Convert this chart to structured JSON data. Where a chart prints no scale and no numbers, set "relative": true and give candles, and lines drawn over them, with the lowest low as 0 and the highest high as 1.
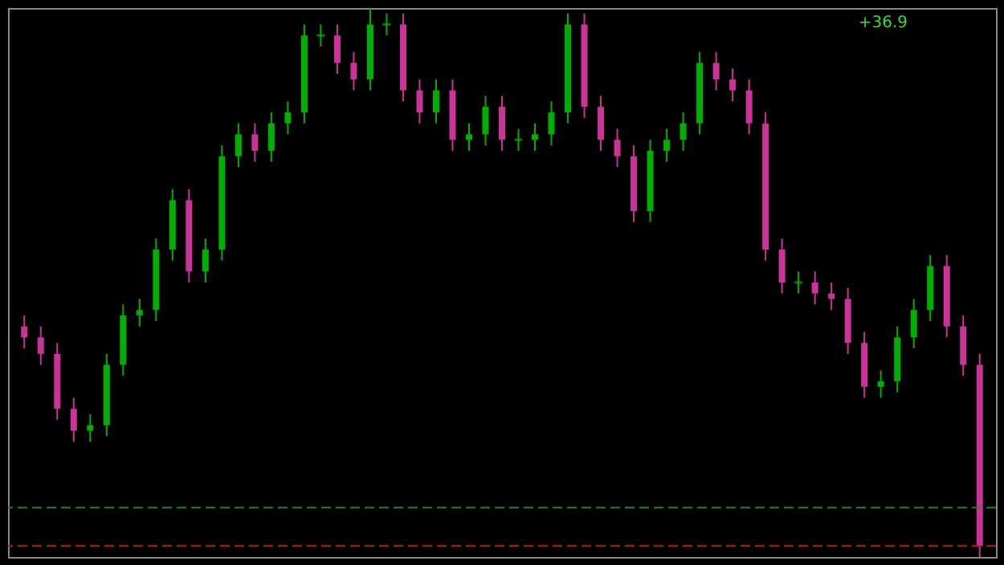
{
  "chart_data": {
    "type": "candlestick",
    "relative": true,
    "grid": false,
    "annotations": [
      "+36.9"
    ],
    "categories": [
      null,
      null,
      null,
      null,
      null,
      null,
      null,
      null,
      null,
      null,
      null,
      null,
      null,
      null,
      null,
      null,
      null,
      null,
      null,
      null,
      null,
      null,
      null,
      null,
      null,
      null,
      null,
      null,
      null,
      null,
      null,
      null,
      null,
      null,
      null,
      null,
      null,
      null,
      null,
      null,
      null,
      null,
      null,
      null,
      null,
      null,
      null,
      null,
      null,
      null,
      null,
      null,
      null,
      null,
      null,
      null,
      null,
      null,
      null
    ],
    "ohlc": [
      [
        0.42,
        0.44,
        0.38,
        0.4
      ],
      [
        0.4,
        0.42,
        0.35,
        0.37
      ],
      [
        0.37,
        0.39,
        0.25,
        0.27
      ],
      [
        0.27,
        0.29,
        0.21,
        0.23
      ],
      [
        0.23,
        0.26,
        0.21,
        0.24
      ],
      [
        0.24,
        0.37,
        0.22,
        0.35
      ],
      [
        0.35,
        0.46,
        0.33,
        0.44
      ],
      [
        0.44,
        0.47,
        0.42,
        0.45
      ],
      [
        0.45,
        0.58,
        0.43,
        0.56
      ],
      [
        0.56,
        0.67,
        0.54,
        0.65
      ],
      [
        0.65,
        0.67,
        0.5,
        0.52
      ],
      [
        0.52,
        0.58,
        0.5,
        0.56
      ],
      [
        0.56,
        0.75,
        0.54,
        0.73
      ],
      [
        0.73,
        0.79,
        0.71,
        0.77
      ],
      [
        0.77,
        0.79,
        0.72,
        0.74
      ],
      [
        0.74,
        0.81,
        0.72,
        0.79
      ],
      [
        0.79,
        0.83,
        0.77,
        0.81
      ],
      [
        0.81,
        0.97,
        0.79,
        0.95
      ],
      [
        0.95,
        0.97,
        0.93,
        0.95
      ],
      [
        0.95,
        0.97,
        0.88,
        0.9
      ],
      [
        0.9,
        0.92,
        0.85,
        0.87
      ],
      [
        0.87,
        1.0,
        0.85,
        0.97
      ],
      [
        0.97,
        0.99,
        0.95,
        0.97
      ],
      [
        0.97,
        0.99,
        0.83,
        0.85
      ],
      [
        0.85,
        0.87,
        0.79,
        0.81
      ],
      [
        0.81,
        0.87,
        0.79,
        0.85
      ],
      [
        0.85,
        0.87,
        0.74,
        0.76
      ],
      [
        0.76,
        0.79,
        0.74,
        0.77
      ],
      [
        0.77,
        0.84,
        0.75,
        0.82
      ],
      [
        0.82,
        0.84,
        0.74,
        0.76
      ],
      [
        0.76,
        0.78,
        0.74,
        0.76
      ],
      [
        0.76,
        0.79,
        0.74,
        0.77
      ],
      [
        0.77,
        0.83,
        0.75,
        0.81
      ],
      [
        0.81,
        0.99,
        0.79,
        0.97
      ],
      [
        0.97,
        0.99,
        0.8,
        0.82
      ],
      [
        0.82,
        0.84,
        0.74,
        0.76
      ],
      [
        0.76,
        0.78,
        0.71,
        0.73
      ],
      [
        0.73,
        0.75,
        0.61,
        0.63
      ],
      [
        0.63,
        0.76,
        0.61,
        0.74
      ],
      [
        0.74,
        0.78,
        0.72,
        0.76
      ],
      [
        0.76,
        0.81,
        0.74,
        0.79
      ],
      [
        0.79,
        0.92,
        0.77,
        0.9
      ],
      [
        0.9,
        0.92,
        0.85,
        0.87
      ],
      [
        0.87,
        0.89,
        0.83,
        0.85
      ],
      [
        0.85,
        0.87,
        0.77,
        0.79
      ],
      [
        0.79,
        0.81,
        0.54,
        0.56
      ],
      [
        0.56,
        0.58,
        0.48,
        0.5
      ],
      [
        0.5,
        0.52,
        0.48,
        0.5
      ],
      [
        0.5,
        0.52,
        0.46,
        0.48
      ],
      [
        0.48,
        0.5,
        0.45,
        0.47
      ],
      [
        0.47,
        0.49,
        0.37,
        0.39
      ],
      [
        0.39,
        0.41,
        0.29,
        0.31
      ],
      [
        0.31,
        0.34,
        0.29,
        0.32
      ],
      [
        0.32,
        0.42,
        0.3,
        0.4
      ],
      [
        0.4,
        0.47,
        0.38,
        0.45
      ],
      [
        0.45,
        0.55,
        0.43,
        0.53
      ],
      [
        0.53,
        0.55,
        0.4,
        0.42
      ],
      [
        0.42,
        0.44,
        0.33,
        0.35
      ],
      [
        0.35,
        0.37,
        0.0,
        0.02
      ]
    ],
    "colors": [
      "#cc3399",
      "#cc3399",
      "#cc3399",
      "#cc3399",
      "#00b000",
      "#00b000",
      "#00b000",
      "#00b000",
      "#00b000",
      "#00b000",
      "#cc3399",
      "#00b000",
      "#00b000",
      "#00b000",
      "#cc3399",
      "#00b000",
      "#00b000",
      "#00b000",
      "#00b000",
      "#cc3399",
      "#cc3399",
      "#00b000",
      "#00b000",
      "#cc3399",
      "#cc3399",
      "#00b000",
      "#cc3399",
      "#00b000",
      "#00b000",
      "#cc3399",
      "#00b000",
      "#00b000",
      "#00b000",
      "#00b000",
      "#cc3399",
      "#cc3399",
      "#cc3399",
      "#cc3399",
      "#00b000",
      "#00b000",
      "#00b000",
      "#00b000",
      "#cc3399",
      "#cc3399",
      "#cc3399",
      "#cc3399",
      "#cc3399",
      "#00b000",
      "#cc3399",
      "#cc3399",
      "#cc3399",
      "#cc3399",
      "#00b000",
      "#00b000",
      "#00b000",
      "#00b000",
      "#cc3399",
      "#cc3399",
      "#cc3399"
    ],
    "ref_lines": [
      {
        "axis": "y",
        "value": 0.09,
        "color": "#2e7d32",
        "line_style": "dashed"
      },
      {
        "axis": "y",
        "value": 0.02,
        "color": "#b71c1c",
        "line_style": "dashed"
      }
    ]
  }
}
